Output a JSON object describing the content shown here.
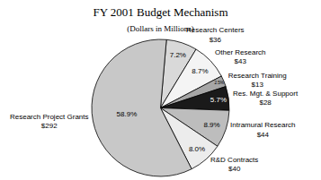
{
  "chart_data": {
    "type": "pie",
    "title": "FY 2001 Budget Mechanism",
    "subtitle": "(Dollars in Millions)",
    "categories": [
      "Research Centers",
      "Other Research",
      "Research Training",
      "Res. Mgt. & Support",
      "Intramural Research",
      "R&D Contracts",
      "Research Project Grants"
    ],
    "values": [
      36,
      43,
      13,
      28,
      44,
      40,
      292
    ],
    "value_labels": [
      "$36",
      "$43",
      "$13",
      "$28",
      "$44",
      "$40",
      "$292"
    ],
    "percentages": [
      7.2,
      8.7,
      2.5,
      5.7,
      8.9,
      8.0,
      58.9
    ],
    "percent_labels": [
      "7.2%",
      "8.7%",
      "2.5%",
      "5.7%",
      "8.9%",
      "8.0%",
      "58.9%"
    ],
    "colors": [
      "#d9d9d9",
      "#f4f4f4",
      "#a6a6a6",
      "#1a1a1a",
      "#bdbdbd",
      "#ececec",
      "#c8c8c8"
    ],
    "data_labels": true
  }
}
